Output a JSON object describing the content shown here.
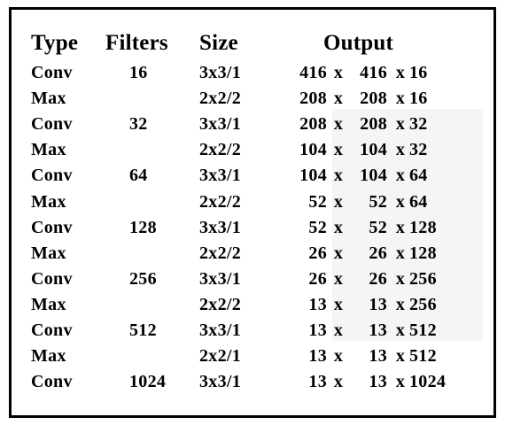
{
  "table": {
    "headers": {
      "type": "Type",
      "filters": "Filters",
      "size": "Size",
      "output": "Output"
    },
    "rows": [
      {
        "type": "Conv",
        "filters": "16",
        "size": "3x3/1",
        "out_a": "416",
        "x1": "x",
        "out_b": "416",
        "x2": "x",
        "out_c": "16"
      },
      {
        "type": "Max",
        "filters": "",
        "size": "2x2/2",
        "out_a": "208",
        "x1": "x",
        "out_b": "208",
        "x2": "x",
        "out_c": "16"
      },
      {
        "type": "Conv",
        "filters": "32",
        "size": "3x3/1",
        "out_a": "208",
        "x1": "x",
        "out_b": "208",
        "x2": "x",
        "out_c": "32"
      },
      {
        "type": "Max",
        "filters": "",
        "size": "2x2/2",
        "out_a": "104",
        "x1": "x",
        "out_b": "104",
        "x2": "x",
        "out_c": "32"
      },
      {
        "type": "Conv",
        "filters": "64",
        "size": "3x3/1",
        "out_a": "104",
        "x1": "x",
        "out_b": "104",
        "x2": "x",
        "out_c": "64"
      },
      {
        "type": "Max",
        "filters": "",
        "size": "2x2/2",
        "out_a": "52",
        "x1": "x",
        "out_b": "52",
        "x2": "x",
        "out_c": "64"
      },
      {
        "type": "Conv",
        "filters": "128",
        "size": "3x3/1",
        "out_a": "52",
        "x1": "x",
        "out_b": "52",
        "x2": "x",
        "out_c": "128"
      },
      {
        "type": "Max",
        "filters": "",
        "size": "2x2/2",
        "out_a": "26",
        "x1": "x",
        "out_b": "26",
        "x2": "x",
        "out_c": "128"
      },
      {
        "type": "Conv",
        "filters": "256",
        "size": "3x3/1",
        "out_a": "26",
        "x1": "x",
        "out_b": "26",
        "x2": "x",
        "out_c": "256"
      },
      {
        "type": "Max",
        "filters": "",
        "size": "2x2/2",
        "out_a": "13",
        "x1": "x",
        "out_b": "13",
        "x2": "x",
        "out_c": "256"
      },
      {
        "type": "Conv",
        "filters": "512",
        "size": "3x3/1",
        "out_a": "13",
        "x1": "x",
        "out_b": "13",
        "x2": "x",
        "out_c": "512"
      },
      {
        "type": "Max",
        "filters": "",
        "size": "2x2/1",
        "out_a": "13",
        "x1": "x",
        "out_b": "13",
        "x2": "x",
        "out_c": "512"
      },
      {
        "type": "Conv",
        "filters": "1024",
        "size": "3x3/1",
        "out_a": "13",
        "x1": "x",
        "out_b": "13",
        "x2": "x",
        "out_c": "1024"
      }
    ]
  },
  "colors": {
    "border": "#000000",
    "text": "#000000",
    "background": "#ffffff",
    "shade": "#f5f5f5"
  }
}
